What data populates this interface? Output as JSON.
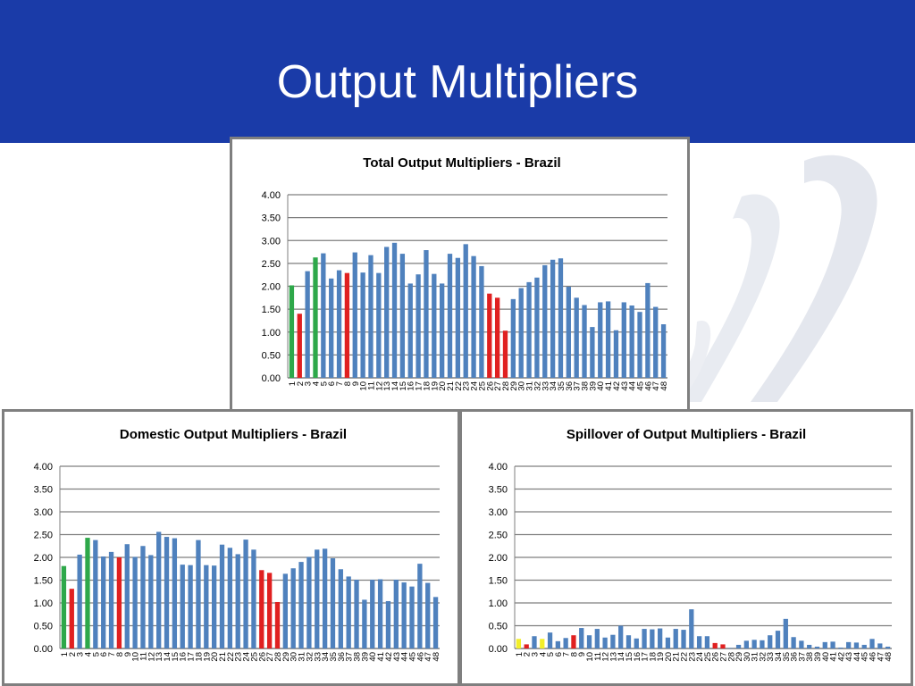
{
  "slide": {
    "title": "Output Multipliers",
    "header_color": "#1a3ba8"
  },
  "colors": {
    "default": "#4f81bd",
    "green": "#2ea84a",
    "red": "#e02020",
    "yellow": "#f2ee2a",
    "grid": "#7f7f7f"
  },
  "chart_data": [
    {
      "id": "total",
      "type": "bar",
      "title": "Total Output Multipliers - Brazil",
      "xlabel": "",
      "ylabel": "",
      "ylim": [
        0,
        4
      ],
      "yticks": [
        "0.00",
        "0.50",
        "1.00",
        "1.50",
        "2.00",
        "2.50",
        "3.00",
        "3.50",
        "4.00"
      ],
      "grid": true,
      "legend": "none",
      "categories": [
        "1",
        "2",
        "3",
        "4",
        "5",
        "6",
        "7",
        "8",
        "9",
        "10",
        "11",
        "12",
        "13",
        "14",
        "15",
        "16",
        "17",
        "18",
        "19",
        "20",
        "21",
        "22",
        "23",
        "24",
        "25",
        "26",
        "27",
        "28",
        "29",
        "30",
        "31",
        "32",
        "33",
        "34",
        "35",
        "36",
        "37",
        "38",
        "39",
        "40",
        "41",
        "42",
        "43",
        "44",
        "45",
        "46",
        "47",
        "48"
      ],
      "values": [
        2.02,
        1.4,
        2.33,
        2.63,
        2.72,
        2.17,
        2.35,
        2.29,
        2.74,
        2.3,
        2.68,
        2.29,
        2.86,
        2.95,
        2.71,
        2.06,
        2.26,
        2.79,
        2.27,
        2.06,
        2.71,
        2.62,
        2.92,
        2.66,
        2.44,
        1.84,
        1.75,
        1.03,
        1.72,
        1.96,
        2.09,
        2.19,
        2.46,
        2.58,
        2.61,
        1.99,
        1.75,
        1.59,
        1.11,
        1.65,
        1.67,
        1.04,
        1.65,
        1.58,
        1.44,
        2.07,
        1.55,
        1.17
      ],
      "highlights": {
        "1": "green",
        "2": "red",
        "4": "green",
        "8": "red",
        "26": "red",
        "27": "red",
        "28": "red"
      }
    },
    {
      "id": "domestic",
      "type": "bar",
      "title": "Domestic Output Multipliers - Brazil",
      "xlabel": "",
      "ylabel": "",
      "ylim": [
        0,
        4
      ],
      "yticks": [
        "0.00",
        "0.50",
        "1.00",
        "1.50",
        "2.00",
        "2.50",
        "3.00",
        "3.50",
        "4.00"
      ],
      "grid": true,
      "legend": "none",
      "categories": [
        "1",
        "2",
        "3",
        "4",
        "5",
        "6",
        "7",
        "8",
        "9",
        "10",
        "11",
        "12",
        "13",
        "14",
        "15",
        "16",
        "17",
        "18",
        "19",
        "20",
        "21",
        "22",
        "23",
        "24",
        "25",
        "26",
        "27",
        "28",
        "29",
        "30",
        "31",
        "32",
        "33",
        "34",
        "35",
        "36",
        "37",
        "38",
        "39",
        "40",
        "41",
        "42",
        "43",
        "44",
        "45",
        "46",
        "47",
        "48"
      ],
      "values": [
        1.81,
        1.31,
        2.06,
        2.43,
        2.38,
        2.02,
        2.12,
        2.0,
        2.29,
        2.01,
        2.25,
        2.05,
        2.56,
        2.45,
        2.42,
        1.84,
        1.83,
        2.38,
        1.83,
        1.82,
        2.28,
        2.21,
        2.07,
        2.39,
        2.17,
        1.72,
        1.66,
        1.02,
        1.64,
        1.76,
        1.9,
        2.01,
        2.17,
        2.19,
        1.98,
        1.74,
        1.58,
        1.51,
        1.07,
        1.51,
        1.52,
        1.04,
        1.51,
        1.45,
        1.36,
        1.86,
        1.44,
        1.13
      ],
      "highlights": {
        "1": "green",
        "2": "red",
        "4": "green",
        "8": "red",
        "26": "red",
        "27": "red",
        "28": "red"
      }
    },
    {
      "id": "spillover",
      "type": "bar",
      "title": "Spillover of Output Multipliers - Brazil",
      "xlabel": "",
      "ylabel": "",
      "ylim": [
        0,
        4
      ],
      "yticks": [
        "0.00",
        "0.50",
        "1.00",
        "1.50",
        "2.00",
        "2.50",
        "3.00",
        "3.50",
        "4.00"
      ],
      "grid": true,
      "legend": "none",
      "categories": [
        "1",
        "2",
        "3",
        "4",
        "5",
        "6",
        "7",
        "8",
        "9",
        "10",
        "11",
        "12",
        "13",
        "14",
        "15",
        "16",
        "17",
        "18",
        "19",
        "20",
        "21",
        "22",
        "23",
        "24",
        "25",
        "26",
        "27",
        "28",
        "29",
        "30",
        "31",
        "32",
        "33",
        "34",
        "35",
        "36",
        "37",
        "38",
        "39",
        "40",
        "41",
        "42",
        "43",
        "44",
        "45",
        "46",
        "47",
        "48"
      ],
      "values": [
        0.21,
        0.09,
        0.27,
        0.21,
        0.35,
        0.16,
        0.23,
        0.29,
        0.45,
        0.29,
        0.43,
        0.24,
        0.3,
        0.5,
        0.29,
        0.22,
        0.43,
        0.42,
        0.44,
        0.24,
        0.43,
        0.41,
        0.86,
        0.27,
        0.27,
        0.12,
        0.09,
        0.01,
        0.08,
        0.17,
        0.19,
        0.18,
        0.29,
        0.39,
        0.65,
        0.25,
        0.17,
        0.08,
        0.04,
        0.14,
        0.15,
        0.02,
        0.14,
        0.13,
        0.08,
        0.21,
        0.11,
        0.04
      ],
      "highlights": {
        "1": "yellow",
        "2": "red",
        "4": "yellow",
        "8": "red",
        "26": "red",
        "27": "red"
      }
    }
  ]
}
